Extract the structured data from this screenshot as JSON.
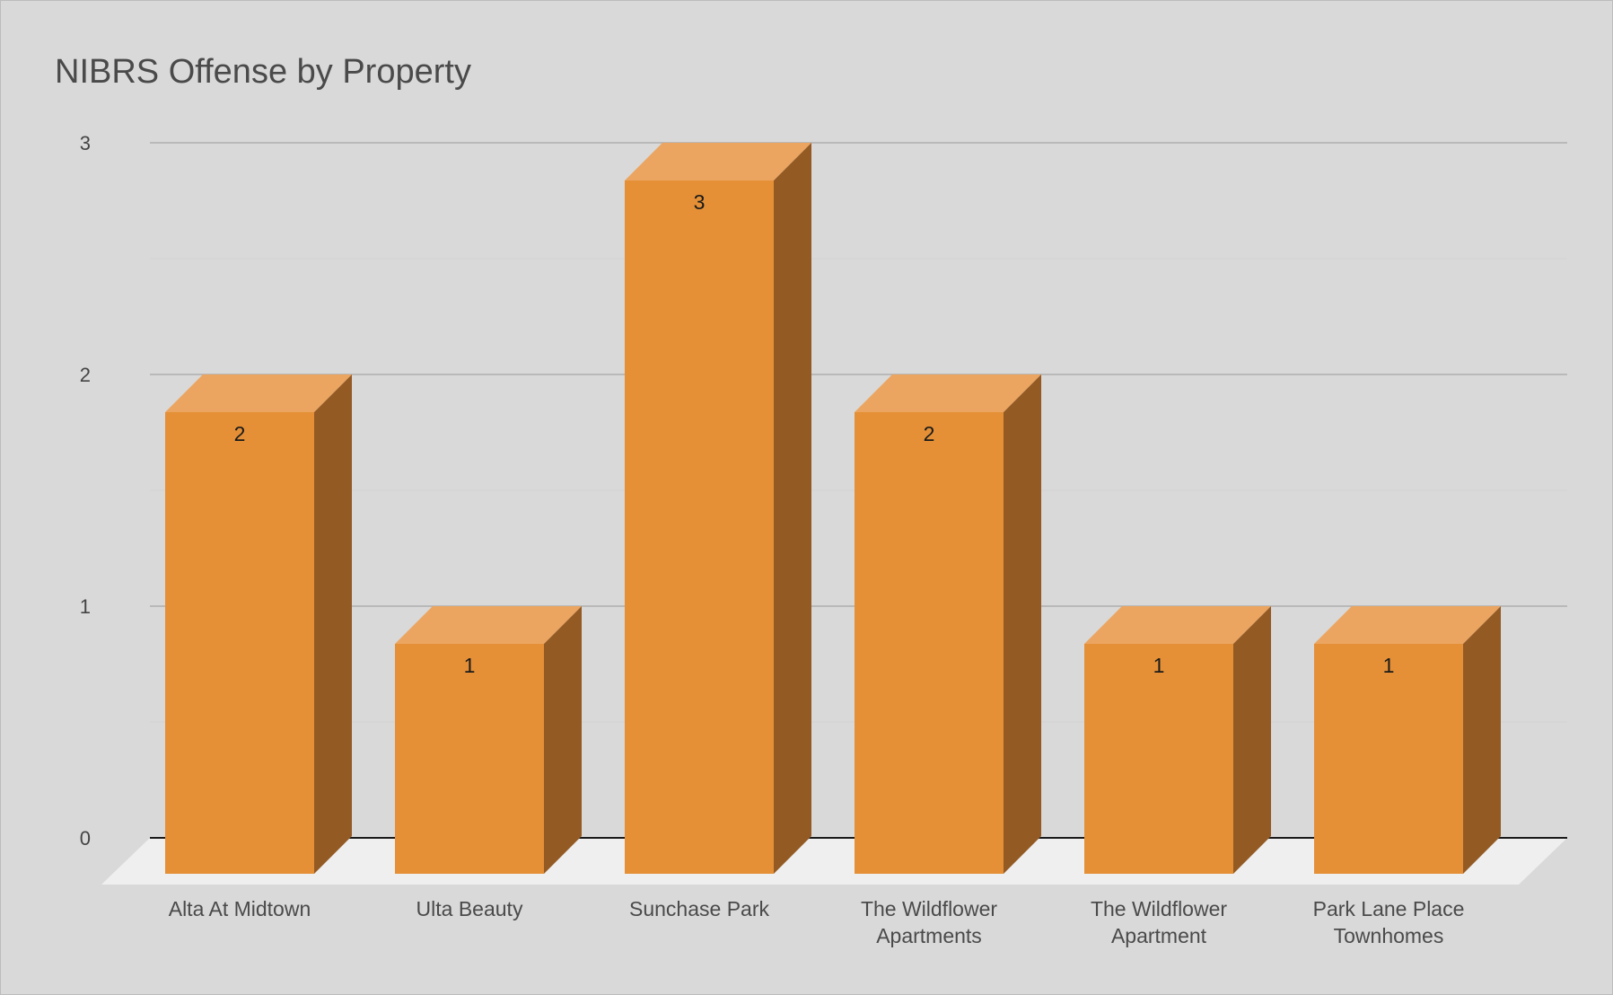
{
  "chart_data": {
    "type": "bar",
    "title": "NIBRS Offense by Property",
    "categories": [
      [
        "Alta At Midtown"
      ],
      [
        "Ulta Beauty"
      ],
      [
        "Sunchase Park"
      ],
      [
        "The Wildflower",
        "Apartments"
      ],
      [
        "The Wildflower",
        "Apartment"
      ],
      [
        "Park Lane Place",
        "Townhomes"
      ]
    ],
    "values": [
      2,
      1,
      3,
      2,
      1,
      1
    ],
    "data_labels": [
      "2",
      "1",
      "3",
      "2",
      "1",
      "1"
    ],
    "y_ticks": [
      "0",
      "1",
      "2",
      "3"
    ],
    "ylim": [
      0,
      3
    ],
    "xlabel": "",
    "ylabel": "",
    "grid": true,
    "legend": "none",
    "three_d": true,
    "colors": {
      "front": "#e59036",
      "top": "#eba561",
      "side": "#935a24",
      "floor": "#efefef",
      "grid": "#a6a6a6",
      "minor_grid": "#d3d3d3",
      "baseline": "#1a1a1a",
      "background": "#d9d9d9"
    }
  }
}
